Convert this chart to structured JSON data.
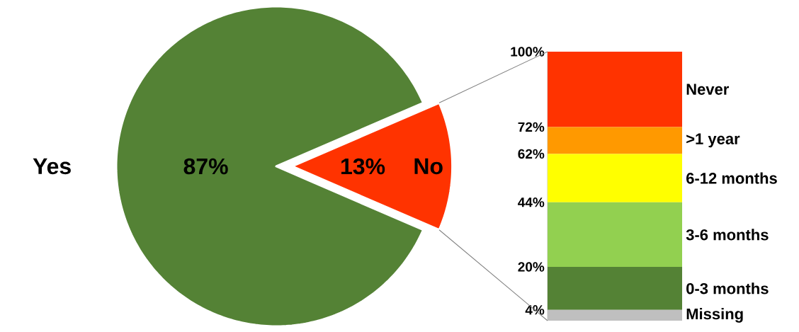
{
  "chart_data": [
    {
      "type": "pie",
      "categories": [
        "Yes",
        "No"
      ],
      "values": [
        87,
        13
      ],
      "colors": [
        "#548235",
        "#ff3300"
      ],
      "value_labels": [
        "87%",
        "13%"
      ]
    },
    {
      "type": "bar",
      "stacked": true,
      "categories": [
        null
      ],
      "series": [
        {
          "name": "Missing",
          "color": "#bfbfbf",
          "values": [
            4
          ]
        },
        {
          "name": "0-3 months",
          "color": "#548235",
          "values": [
            16
          ]
        },
        {
          "name": "3-6 months",
          "color": "#92d050",
          "values": [
            24
          ]
        },
        {
          "name": "6-12 months",
          "color": "#ffff00",
          "values": [
            18
          ]
        },
        {
          "name": ">1 year",
          "color": "#ff9900",
          "values": [
            10
          ]
        },
        {
          "name": "Never",
          "color": "#ff3300",
          "values": [
            28
          ]
        }
      ],
      "ylim": [
        0,
        100
      ],
      "yticks": [
        {
          "value": 4,
          "label": "4%"
        },
        {
          "value": 20,
          "label": "20%"
        },
        {
          "value": 44,
          "label": "44%"
        },
        {
          "value": 62,
          "label": "62%"
        },
        {
          "value": 72,
          "label": "72%"
        },
        {
          "value": 100,
          "label": "100%"
        }
      ]
    }
  ]
}
